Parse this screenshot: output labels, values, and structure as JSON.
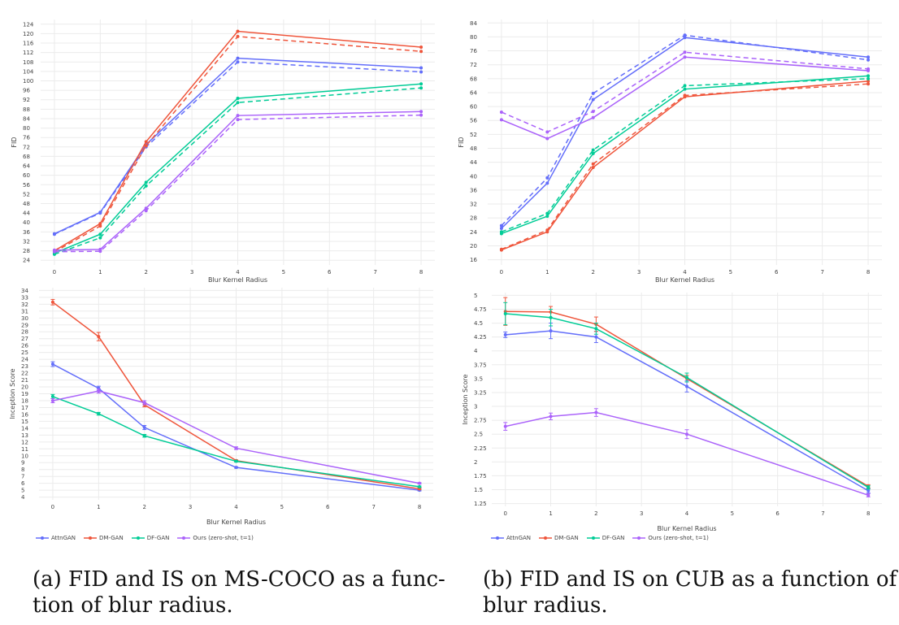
{
  "legend": {
    "series": [
      {
        "name": "AttnGAN",
        "color": "#636efa"
      },
      {
        "name": "DM-GAN",
        "color": "#ef553b"
      },
      {
        "name": "DF-GAN",
        "color": "#00cc96"
      },
      {
        "name": "Ours (zero-shot, t=1)",
        "color": "#ab63fa"
      }
    ]
  },
  "captions": {
    "left_line1": "(a) FID and IS on MS-COCO as a func-",
    "left_line2": "tion of blur radius.",
    "right_line1": "(b) FID and IS on CUB as a function of",
    "right_line2": "blur radius."
  },
  "chart_data": [
    {
      "id": "coco_fid",
      "type": "line",
      "xlabel": "Blur Kernel Radius",
      "ylabel": "FID",
      "x": [
        0,
        1,
        2,
        4,
        8
      ],
      "xticks": [
        0,
        1,
        2,
        3,
        4,
        5,
        6,
        7,
        8
      ],
      "xlim": [
        -0.3,
        8.3
      ],
      "ylim": [
        22,
        126
      ],
      "ytick_start": 24,
      "ytick_end": 124,
      "ytick_step": 4,
      "series": [
        {
          "name": "AttnGAN",
          "color": "#636efa",
          "dash": false,
          "values": [
            35.2,
            44.3,
            73.0,
            109.6,
            105.5
          ]
        },
        {
          "name": "AttnGAN",
          "color": "#636efa",
          "dash": true,
          "values": [
            35.0,
            44.0,
            72.0,
            108.0,
            103.8
          ]
        },
        {
          "name": "DM-GAN",
          "color": "#ef553b",
          "dash": false,
          "values": [
            28.0,
            39.5,
            74.2,
            121.0,
            114.3
          ]
        },
        {
          "name": "DM-GAN",
          "color": "#ef553b",
          "dash": true,
          "values": [
            27.5,
            38.5,
            72.5,
            118.8,
            112.5
          ]
        },
        {
          "name": "DF-GAN",
          "color": "#00cc96",
          "dash": false,
          "values": [
            27.0,
            35.0,
            57.0,
            92.6,
            98.7
          ]
        },
        {
          "name": "DF-GAN",
          "color": "#00cc96",
          "dash": true,
          "values": [
            26.5,
            33.5,
            55.5,
            90.8,
            97.0
          ]
        },
        {
          "name": "Ours (zero-shot, t=1)",
          "color": "#ab63fa",
          "dash": false,
          "values": [
            28.3,
            28.6,
            46.0,
            85.3,
            87.0
          ]
        },
        {
          "name": "Ours (zero-shot, t=1)",
          "color": "#ab63fa",
          "dash": true,
          "values": [
            27.6,
            27.8,
            45.0,
            83.6,
            85.5
          ]
        }
      ]
    },
    {
      "id": "cub_fid",
      "type": "line",
      "xlabel": "Blur Kernel Radius",
      "ylabel": "FID",
      "x": [
        0,
        1,
        2,
        4,
        8
      ],
      "xticks": [
        0,
        1,
        2,
        3,
        4,
        5,
        6,
        7,
        8
      ],
      "xlim": [
        -0.3,
        8.3
      ],
      "ylim": [
        14.5,
        85
      ],
      "ytick_start": 16,
      "ytick_end": 84,
      "ytick_step": 4,
      "series": [
        {
          "name": "AttnGAN",
          "color": "#636efa",
          "dash": false,
          "values": [
            25.0,
            38.0,
            62.0,
            79.8,
            74.2
          ]
        },
        {
          "name": "AttnGAN",
          "color": "#636efa",
          "dash": true,
          "values": [
            25.8,
            39.5,
            63.8,
            80.5,
            73.4
          ]
        },
        {
          "name": "DM-GAN",
          "color": "#ef553b",
          "dash": false,
          "values": [
            18.8,
            24.0,
            42.5,
            62.8,
            67.3
          ]
        },
        {
          "name": "DM-GAN",
          "color": "#ef553b",
          "dash": true,
          "values": [
            19.0,
            24.5,
            43.5,
            63.2,
            66.5
          ]
        },
        {
          "name": "DF-GAN",
          "color": "#00cc96",
          "dash": false,
          "values": [
            23.5,
            28.5,
            46.5,
            65.0,
            68.8
          ]
        },
        {
          "name": "DF-GAN",
          "color": "#00cc96",
          "dash": true,
          "values": [
            24.0,
            29.3,
            47.5,
            66.0,
            68.0
          ]
        },
        {
          "name": "Ours (zero-shot, t=1)",
          "color": "#ab63fa",
          "dash": false,
          "values": [
            56.2,
            50.8,
            56.8,
            74.2,
            70.3
          ]
        },
        {
          "name": "Ours (zero-shot, t=1)",
          "color": "#ab63fa",
          "dash": true,
          "values": [
            58.4,
            52.7,
            58.6,
            75.6,
            70.8
          ]
        }
      ]
    },
    {
      "id": "coco_is",
      "type": "line",
      "xlabel": "Blur Kernel Radius",
      "ylabel": "Inception Score",
      "x": [
        0,
        1,
        2,
        4,
        8
      ],
      "xticks": [
        0,
        1,
        2,
        3,
        4,
        5,
        6,
        7,
        8
      ],
      "xlim": [
        -0.3,
        8.3
      ],
      "ylim": [
        3.6,
        34.4
      ],
      "ytick_start": 4,
      "ytick_end": 34,
      "ytick_step": 1,
      "series": [
        {
          "name": "AttnGAN",
          "color": "#636efa",
          "dash": false,
          "values": [
            23.3,
            19.8,
            14.1,
            8.3,
            5.0
          ],
          "errors": [
            0.35,
            0.3,
            0.3,
            0.1,
            0.1
          ]
        },
        {
          "name": "DM-GAN",
          "color": "#ef553b",
          "dash": false,
          "values": [
            32.3,
            27.3,
            17.4,
            9.3,
            5.2
          ],
          "errors": [
            0.4,
            0.6,
            0.3,
            0.1,
            0.1
          ]
        },
        {
          "name": "DF-GAN",
          "color": "#00cc96",
          "dash": false,
          "values": [
            18.6,
            16.1,
            12.9,
            9.2,
            5.5
          ],
          "errors": [
            0.3,
            0.2,
            0.2,
            0.1,
            0.1
          ]
        },
        {
          "name": "Ours (zero-shot, t=1)",
          "color": "#ab63fa",
          "dash": false,
          "values": [
            18.0,
            19.4,
            17.7,
            11.1,
            6.0
          ],
          "errors": [
            0.3,
            0.3,
            0.3,
            0.2,
            0.1
          ]
        }
      ]
    },
    {
      "id": "cub_is",
      "type": "line",
      "xlabel": "Blur Kernel Radius",
      "ylabel": "Inception Score",
      "x": [
        0,
        1,
        2,
        4,
        8
      ],
      "xticks": [
        0,
        1,
        2,
        3,
        4,
        5,
        6,
        7,
        8
      ],
      "xlim": [
        -0.3,
        8.3
      ],
      "ylim": [
        1.2,
        5.05
      ],
      "yticks": [
        1.25,
        1.5,
        1.75,
        2,
        2.25,
        2.5,
        2.75,
        3,
        3.25,
        3.5,
        3.75,
        4,
        4.25,
        4.5,
        4.75,
        5
      ],
      "series": [
        {
          "name": "AttnGAN",
          "color": "#636efa",
          "dash": false,
          "values": [
            4.29,
            4.36,
            4.25,
            3.36,
            1.48
          ],
          "errors": [
            0.05,
            0.14,
            0.1,
            0.1,
            0.04
          ]
        },
        {
          "name": "DM-GAN",
          "color": "#ef553b",
          "dash": false,
          "values": [
            4.71,
            4.7,
            4.48,
            3.5,
            1.56
          ],
          "errors": [
            0.25,
            0.1,
            0.13,
            0.06,
            0.03
          ]
        },
        {
          "name": "DF-GAN",
          "color": "#00cc96",
          "dash": false,
          "values": [
            4.67,
            4.6,
            4.4,
            3.52,
            1.54
          ],
          "errors": [
            0.2,
            0.15,
            0.1,
            0.08,
            0.03
          ]
        },
        {
          "name": "Ours (zero-shot, t=1)",
          "color": "#ab63fa",
          "dash": false,
          "values": [
            2.64,
            2.82,
            2.89,
            2.5,
            1.4
          ],
          "errors": [
            0.07,
            0.06,
            0.07,
            0.08,
            0.03
          ]
        }
      ]
    }
  ]
}
